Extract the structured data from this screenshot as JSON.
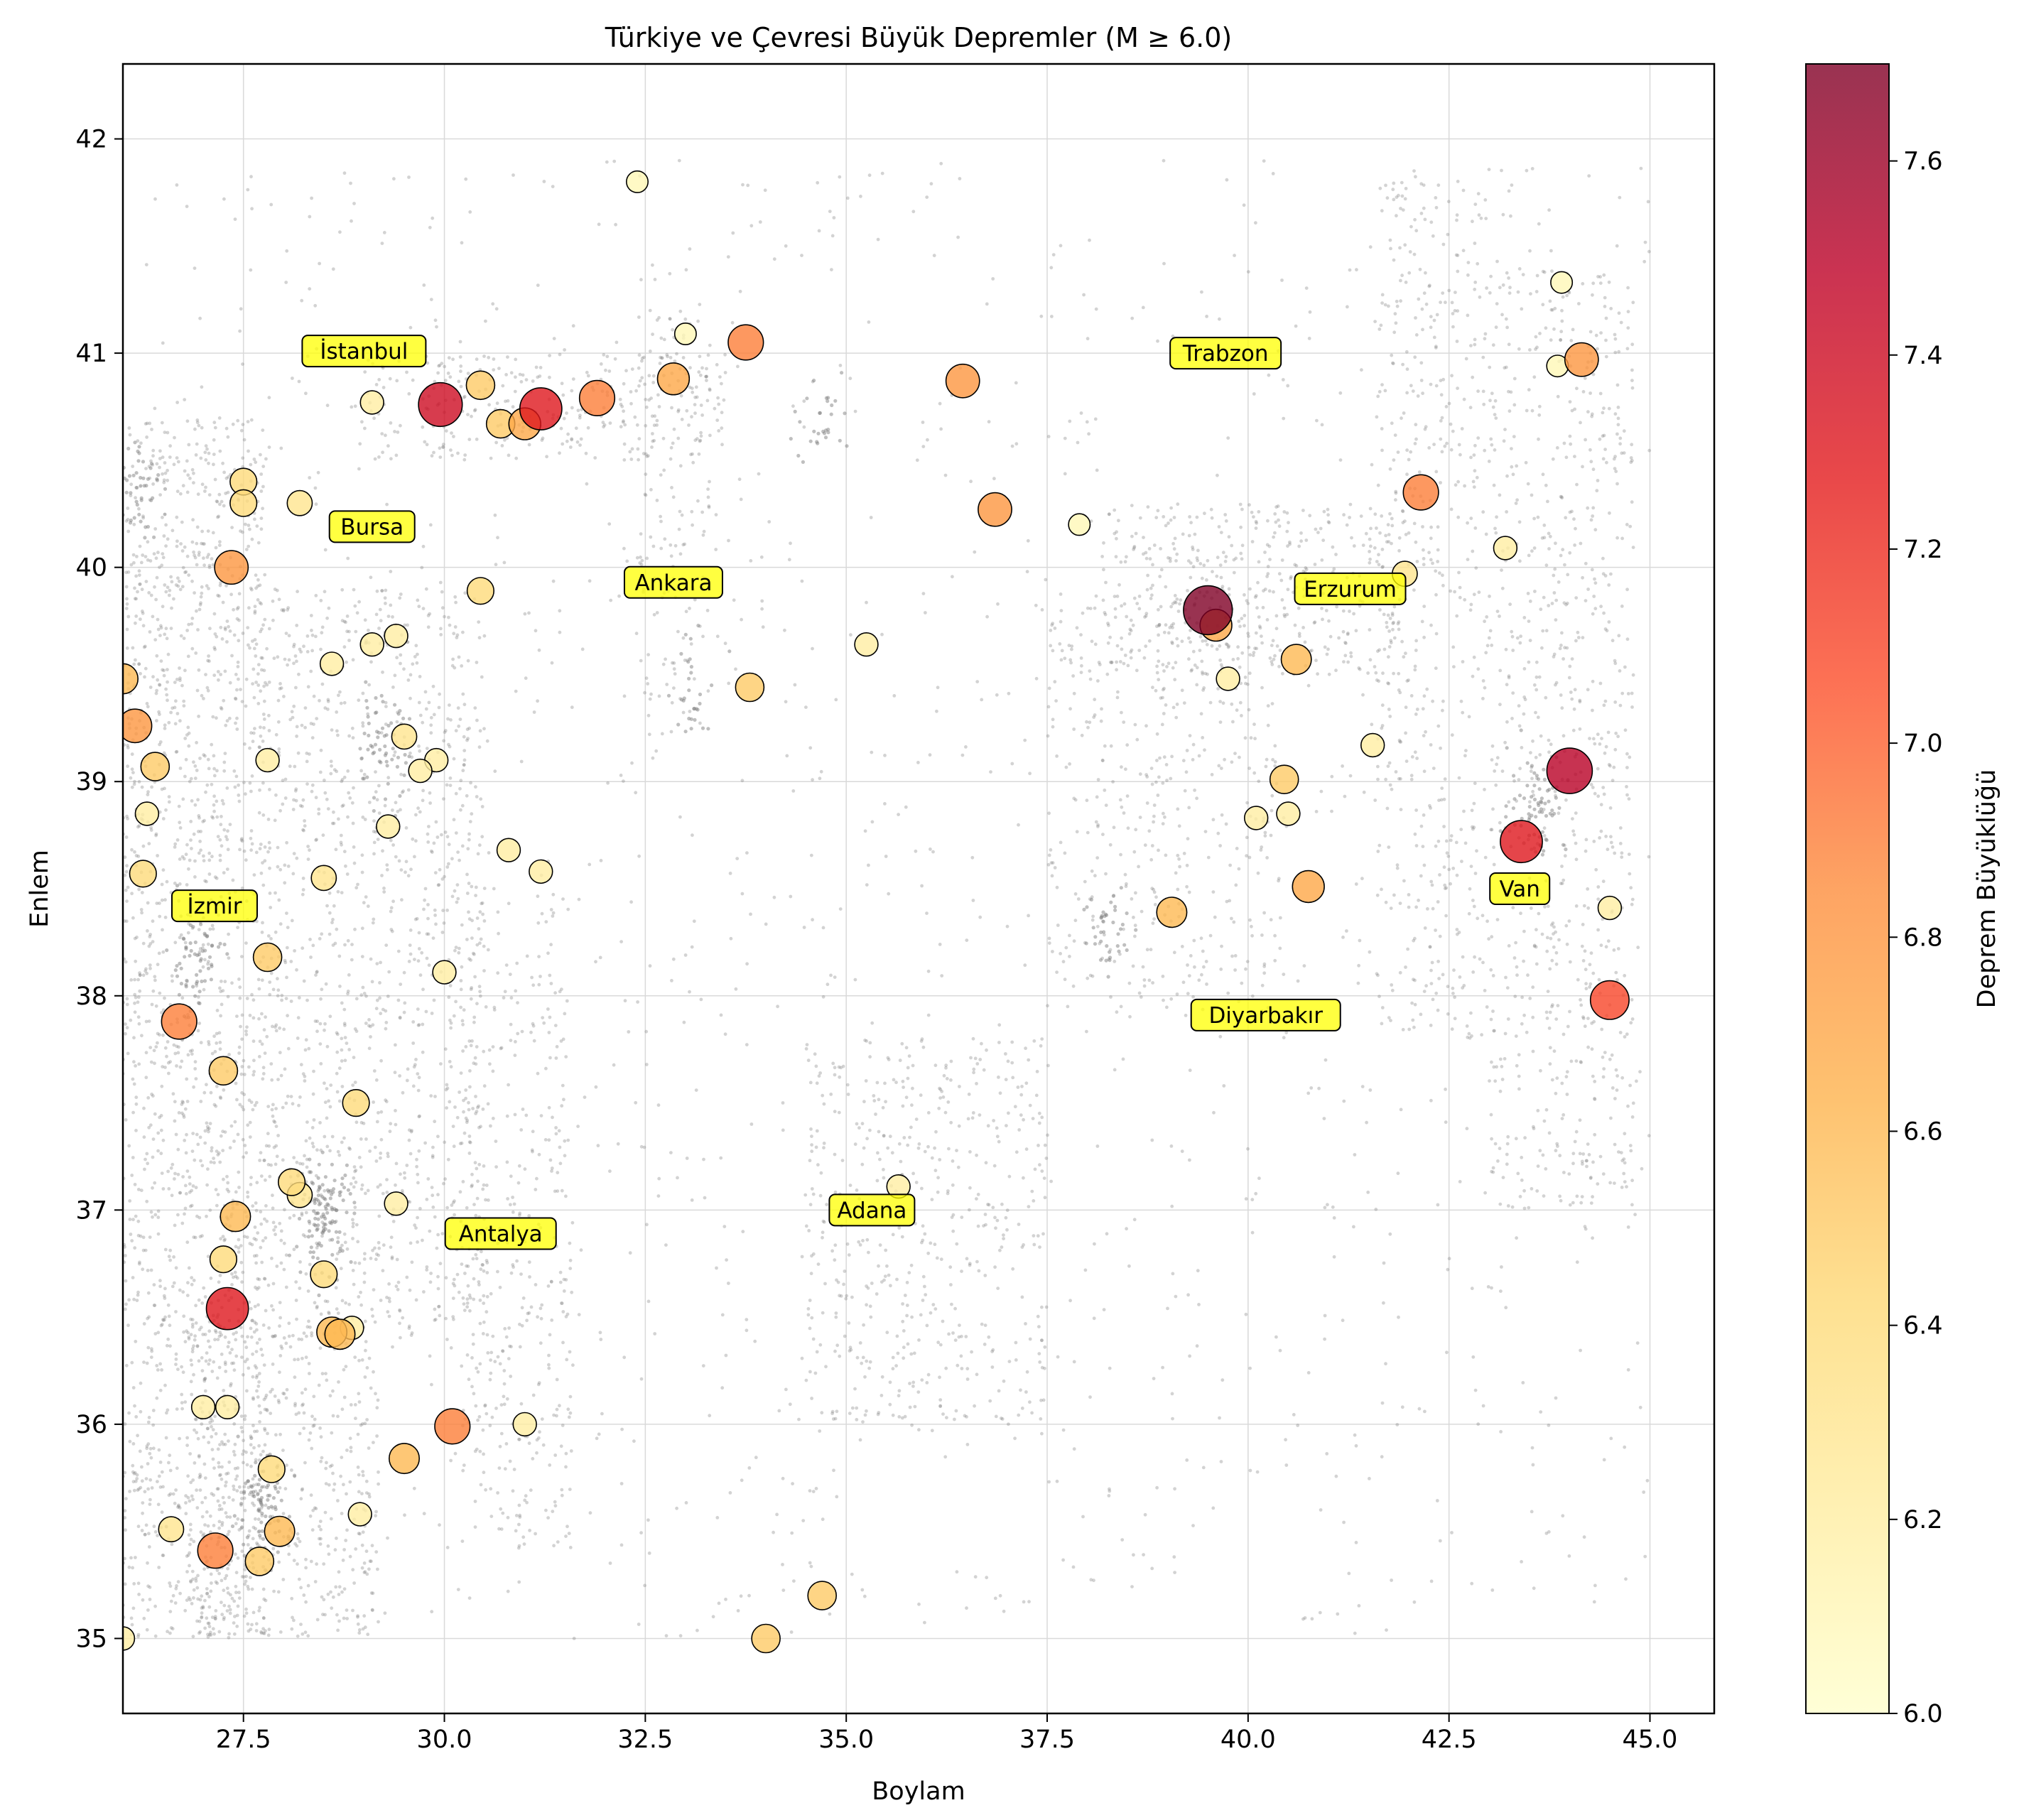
{
  "chart_data": {
    "type": "scatter",
    "title": "Türkiye ve Çevresi Büyük Depremler (M ≥ 6.0)",
    "xlabel": "Boylam",
    "ylabel": "Enlem",
    "xlim": [
      26.0,
      45.8
    ],
    "ylim": [
      34.65,
      42.35
    ],
    "x_ticks": [
      27.5,
      30.0,
      32.5,
      35.0,
      37.5,
      40.0,
      42.5,
      45.0
    ],
    "x_tick_labels": [
      "27.5",
      "30.0",
      "32.5",
      "35.0",
      "37.5",
      "40.0",
      "42.5",
      "45.0"
    ],
    "y_ticks": [
      35,
      36,
      37,
      38,
      39,
      40,
      41,
      42
    ],
    "y_tick_labels": [
      "35",
      "36",
      "37",
      "38",
      "39",
      "40",
      "41",
      "42"
    ],
    "grid": true,
    "colorbar": {
      "label": "Deprem Büyüklüğü",
      "range": [
        6.0,
        7.7
      ],
      "ticks": [
        6.0,
        6.2,
        6.4,
        6.6,
        6.8,
        7.0,
        7.2,
        7.4,
        7.6
      ],
      "tick_labels": [
        "6.0",
        "6.2",
        "6.4",
        "6.6",
        "6.8",
        "7.0",
        "7.2",
        "7.4",
        "7.6"
      ],
      "colormap": "YlOrRd",
      "colors": [
        "#ffffcc",
        "#ffeda0",
        "#fed976",
        "#feb24c",
        "#fd8d3c",
        "#fc4e2a",
        "#e31a1c",
        "#bd0026",
        "#800026"
      ]
    },
    "background_events": "small gray points (all recorded earthquakes) concentrated along fault zones",
    "background_color": "#808080",
    "cities": [
      {
        "name": "İstanbul",
        "lon": 29.0,
        "lat": 41.01
      },
      {
        "name": "Bursa",
        "lon": 29.1,
        "lat": 40.19
      },
      {
        "name": "Ankara",
        "lon": 32.85,
        "lat": 39.93
      },
      {
        "name": "İzmir",
        "lon": 27.14,
        "lat": 38.42
      },
      {
        "name": "Antalya",
        "lon": 30.7,
        "lat": 36.89
      },
      {
        "name": "Adana",
        "lon": 35.32,
        "lat": 37.0
      },
      {
        "name": "Trabzon",
        "lon": 39.72,
        "lat": 41.0
      },
      {
        "name": "Erzurum",
        "lon": 41.27,
        "lat": 39.9
      },
      {
        "name": "Diyarbakır",
        "lon": 40.22,
        "lat": 37.91
      },
      {
        "name": "Van",
        "lon": 43.38,
        "lat": 38.5
      }
    ],
    "series": [
      {
        "columns": [
          "lon",
          "lat",
          "magnitude"
        ],
        "points": [
          [
            32.4,
            41.8,
            6.1
          ],
          [
            33.0,
            41.09,
            6.1
          ],
          [
            33.75,
            41.05,
            6.9
          ],
          [
            32.85,
            40.88,
            6.7
          ],
          [
            31.9,
            40.79,
            6.9
          ],
          [
            31.2,
            40.74,
            7.3
          ],
          [
            29.95,
            40.76,
            7.4
          ],
          [
            29.1,
            40.77,
            6.2
          ],
          [
            30.45,
            40.85,
            6.5
          ],
          [
            30.7,
            40.67,
            6.5
          ],
          [
            31.0,
            40.67,
            6.7
          ],
          [
            36.45,
            40.87,
            6.8
          ],
          [
            36.85,
            40.27,
            6.8
          ],
          [
            37.9,
            40.2,
            6.1
          ],
          [
            43.9,
            41.33,
            6.1
          ],
          [
            43.85,
            40.94,
            6.1
          ],
          [
            44.15,
            40.97,
            6.8
          ],
          [
            42.15,
            40.35,
            6.9
          ],
          [
            43.2,
            40.09,
            6.2
          ],
          [
            41.95,
            39.97,
            6.3
          ],
          [
            39.5,
            39.8,
            7.7
          ],
          [
            39.6,
            39.73,
            6.7
          ],
          [
            39.75,
            39.48,
            6.2
          ],
          [
            40.6,
            39.57,
            6.6
          ],
          [
            41.55,
            39.17,
            6.2
          ],
          [
            44.0,
            39.05,
            7.5
          ],
          [
            43.4,
            38.72,
            7.3
          ],
          [
            40.45,
            39.01,
            6.5
          ],
          [
            40.1,
            38.83,
            6.2
          ],
          [
            40.5,
            38.85,
            6.2
          ],
          [
            40.75,
            38.51,
            6.7
          ],
          [
            39.05,
            38.39,
            6.6
          ],
          [
            44.5,
            38.41,
            6.2
          ],
          [
            44.5,
            37.98,
            7.1
          ],
          [
            35.25,
            39.64,
            6.2
          ],
          [
            33.8,
            39.44,
            6.5
          ],
          [
            30.45,
            39.89,
            6.4
          ],
          [
            27.5,
            40.4,
            6.4
          ],
          [
            27.5,
            40.3,
            6.4
          ],
          [
            28.2,
            40.3,
            6.3
          ],
          [
            27.35,
            40.0,
            6.8
          ],
          [
            26.0,
            39.48,
            6.6
          ],
          [
            26.15,
            39.26,
            6.8
          ],
          [
            26.4,
            39.07,
            6.5
          ],
          [
            26.3,
            38.85,
            6.2
          ],
          [
            26.25,
            38.57,
            6.4
          ],
          [
            27.8,
            39.1,
            6.2
          ],
          [
            28.6,
            39.55,
            6.2
          ],
          [
            29.1,
            39.64,
            6.2
          ],
          [
            29.4,
            39.68,
            6.2
          ],
          [
            29.5,
            39.21,
            6.3
          ],
          [
            29.9,
            39.1,
            6.2
          ],
          [
            29.7,
            39.05,
            6.2
          ],
          [
            29.3,
            38.79,
            6.2
          ],
          [
            30.8,
            38.68,
            6.2
          ],
          [
            31.2,
            38.58,
            6.2
          ],
          [
            28.5,
            38.55,
            6.3
          ],
          [
            27.8,
            38.18,
            6.5
          ],
          [
            30.0,
            38.11,
            6.2
          ],
          [
            26.7,
            37.88,
            6.9
          ],
          [
            27.25,
            37.65,
            6.5
          ],
          [
            28.9,
            37.5,
            6.4
          ],
          [
            28.1,
            37.13,
            6.4
          ],
          [
            28.2,
            37.07,
            6.3
          ],
          [
            29.4,
            37.03,
            6.2
          ],
          [
            27.4,
            36.97,
            6.6
          ],
          [
            27.25,
            36.77,
            6.4
          ],
          [
            28.5,
            36.7,
            6.4
          ],
          [
            27.3,
            36.54,
            7.3
          ],
          [
            28.85,
            36.45,
            6.2
          ],
          [
            28.6,
            36.43,
            6.6
          ],
          [
            28.7,
            36.42,
            6.6
          ],
          [
            27.0,
            36.08,
            6.2
          ],
          [
            27.3,
            36.08,
            6.2
          ],
          [
            30.1,
            35.99,
            6.9
          ],
          [
            31.0,
            36.0,
            6.2
          ],
          [
            29.5,
            35.84,
            6.6
          ],
          [
            27.85,
            35.79,
            6.4
          ],
          [
            28.95,
            35.58,
            6.2
          ],
          [
            26.6,
            35.51,
            6.3
          ],
          [
            27.95,
            35.5,
            6.6
          ],
          [
            27.15,
            35.41,
            6.9
          ],
          [
            27.7,
            35.36,
            6.5
          ],
          [
            34.7,
            35.2,
            6.5
          ],
          [
            34.0,
            35.0,
            6.5
          ],
          [
            26.0,
            35.0,
            6.2
          ],
          [
            35.65,
            37.11,
            6.2
          ]
        ]
      }
    ]
  }
}
